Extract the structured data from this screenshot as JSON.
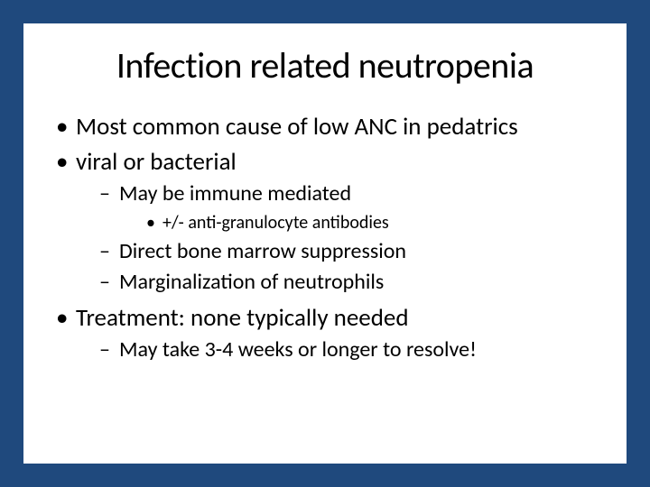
{
  "colors": {
    "background_border": "#1f497d",
    "slide_background": "#ffffff",
    "text": "#000000"
  },
  "typography": {
    "title_fontsize": 40,
    "level1_fontsize": 27,
    "level2_fontsize": 24,
    "level3_fontsize": 20,
    "font_family": "Calibri"
  },
  "title": "Infection related neutropenia",
  "bullets": {
    "l1_0": "Most common cause of low ANC in pedatrics",
    "l1_1": "viral or bacterial",
    "l2_0": "May be immune mediated",
    "l3_0": "+/- anti-granulocyte antibodies",
    "l2_1": "Direct bone marrow suppression",
    "l2_2": "Marginalization of neutrophils",
    "l1_2": "Treatment:  none typically needed",
    "l2_3": "May take 3-4 weeks or longer to resolve!"
  }
}
